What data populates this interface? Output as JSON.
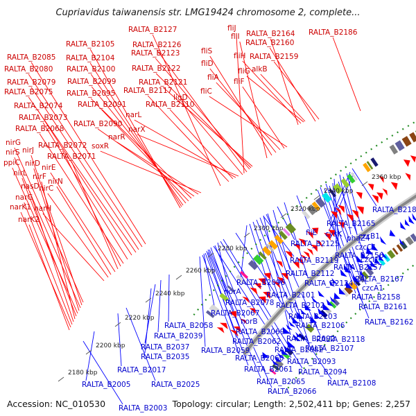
{
  "title": "Cupriavidus taiwanensis str. LMG19424 chromosome 2, complete...",
  "footer": {
    "accession": "Accession: NC_010530",
    "summary": "Topology: circular; Length: 2,502,411 bp; Genes: 2,257"
  },
  "colors": {
    "forward": "#ff0000",
    "reverse": "#0000ff",
    "forward_label": "#cc0000",
    "reverse_label": "#0000cc",
    "backbone": "#888888",
    "dots": "#228b22"
  },
  "ticks": [
    "2180 kbp",
    "2200 kbp",
    "2220 kbp",
    "2240 kbp",
    "2260 kbp",
    "2280 kbp",
    "2300 kbp",
    "2320 kbp",
    "2340 kbp",
    "2360 kbp"
  ],
  "forward_genes": [
    "RALTA_B2127",
    "fliJ",
    "RALTA_B2186",
    "RALTA_B2105",
    "RALTA_B2126",
    "fliI",
    "RALTA_B2164",
    "RALTA_B2160",
    "RALTA_B2085",
    "RALTA_B2104",
    "RALTA_B2123",
    "fliS",
    "fliH",
    "RALTA_B2159",
    "RALTA_B2080",
    "RALTA_B2100",
    "fliD",
    "RALTA_B2122",
    "fliG",
    "alkB",
    "RALTA_B2079",
    "RALTA_B2099",
    "fliA",
    "fliF",
    "RALTA_B2121",
    "RALTA_B2075",
    "RALTA_B2095",
    "RALTA_B2117",
    "fliC",
    "ligD",
    "RALTA_B2074",
    "RALTA_B2091",
    "RALTA_B2110",
    "RALTA_B2073",
    "narL",
    "RALTA_B2090",
    "narX",
    "RALTA_B2068",
    "narR",
    "soxR",
    "nirG",
    "RALTA_B2072",
    "nirJ",
    "nirS",
    "RALTA_B2071",
    "nirD",
    "ppiC",
    "nirE",
    "nirL",
    "nirF",
    "nirN",
    "nasD",
    "nirC",
    "narG",
    "narK1",
    "narH",
    "narK2"
  ],
  "reverse_genes": [
    "RALTA_B2185",
    "RALTA_B2165",
    "cysK",
    "czcB1",
    "phaZ4",
    "czcC1",
    "RALTA_B2156",
    "czcI1",
    "RALTA_B2157",
    "RALTA_B2167",
    "czcA1",
    "RALTA_B2158",
    "RALTA_B2161",
    "RALTA_B2162",
    "fliE",
    "RALTA_B2125",
    "RALTA_B2119",
    "RALTA_B2096",
    "RALTA_B2112",
    "RALTA_B2124",
    "norA",
    "RALTA_B2101",
    "RALTA_B2078",
    "RALTA_B2102",
    "RALTA_B2067",
    "RALTA_B2103",
    "norB",
    "RALTA_B2106",
    "RALTA_B2069",
    "RALTA_B2092",
    "RALTA_B2118",
    "RALTA_B2058",
    "RALTA_B2062",
    "RALTA_B2082",
    "RALTA_B2107",
    "RALTA_B2039",
    "RALTA_B2059",
    "RALTA_B2037",
    "RALTA_B2060",
    "RALTA_B2093",
    "RALTA_B2035",
    "RALTA_B2061",
    "RALTA_B2094",
    "RALTA_B2017",
    "RALTA_B2065",
    "RALTA_B2108",
    "RALTA_B2005",
    "RALTA_B2025",
    "RALTA_B2066",
    "RALTA_B2003"
  ]
}
